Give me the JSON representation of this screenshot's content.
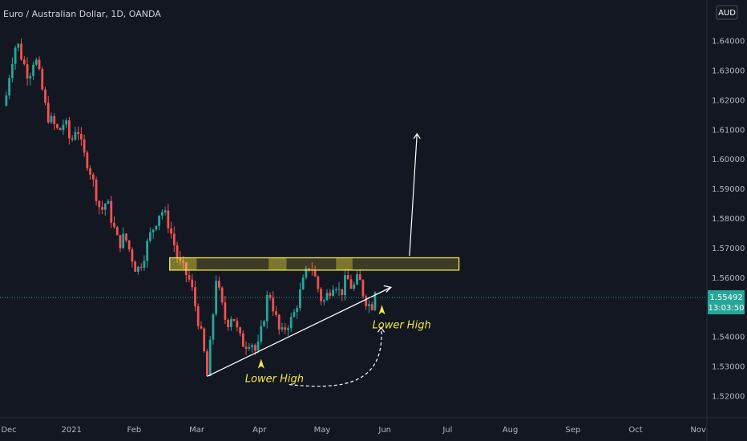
{
  "header": {
    "title": "Euro / Australian Dollar, 1D, OANDA"
  },
  "currency_badge": "AUD",
  "colors": {
    "background": "#131722",
    "up": "#26a69a",
    "down": "#ef5350",
    "zone": "#f5e642",
    "annotation": "#f5e642",
    "line": "#ffffff"
  },
  "price_label": {
    "price": "1.55492",
    "countdown": "13:03:50"
  },
  "chart_data": {
    "type": "candlestick",
    "title": "Euro / Australian Dollar, 1D, OANDA",
    "x_ticks": [
      "Dec",
      "2021",
      "Feb",
      "Mar",
      "Apr",
      "May",
      "Jun",
      "Jul",
      "Aug",
      "Sep",
      "Oct",
      "Nov"
    ],
    "y_ticks": [
      "1.64000",
      "1.63000",
      "1.62000",
      "1.61000",
      "1.60000",
      "1.59000",
      "1.58000",
      "1.57000",
      "1.56000",
      "1.55000",
      "1.54000",
      "1.53000",
      "1.52000"
    ],
    "ylim": [
      1.5155,
      1.6502
    ],
    "grid": false,
    "current_price": 1.55492,
    "close_path": [
      [
        0,
        1.618
      ],
      [
        4,
        1.632
      ],
      [
        8,
        1.64
      ],
      [
        12,
        1.633
      ],
      [
        16,
        1.628
      ],
      [
        20,
        1.635
      ],
      [
        24,
        1.626
      ],
      [
        28,
        1.615
      ],
      [
        32,
        1.612
      ],
      [
        36,
        1.609
      ],
      [
        40,
        1.613
      ],
      [
        44,
        1.605
      ],
      [
        48,
        1.612
      ],
      [
        52,
        1.602
      ],
      [
        56,
        1.598
      ],
      [
        60,
        1.59
      ],
      [
        64,
        1.582
      ],
      [
        68,
        1.586
      ],
      [
        72,
        1.578
      ],
      [
        76,
        1.571
      ],
      [
        80,
        1.574
      ],
      [
        84,
        1.568
      ],
      [
        88,
        1.562
      ],
      [
        92,
        1.566
      ],
      [
        96,
        1.573
      ],
      [
        100,
        1.578
      ],
      [
        104,
        1.583
      ],
      [
        108,
        1.58
      ],
      [
        112,
        1.573
      ],
      [
        116,
        1.565
      ],
      [
        120,
        1.562
      ],
      [
        124,
        1.558
      ],
      [
        128,
        1.548
      ],
      [
        132,
        1.538
      ],
      [
        135,
        1.5265
      ],
      [
        138,
        1.542
      ],
      [
        141,
        1.56
      ],
      [
        144,
        1.552
      ],
      [
        148,
        1.544
      ],
      [
        152,
        1.548
      ],
      [
        156,
        1.54
      ],
      [
        160,
        1.537
      ],
      [
        164,
        1.539
      ],
      [
        168,
        1.534
      ],
      [
        172,
        1.544
      ],
      [
        176,
        1.556
      ],
      [
        180,
        1.548
      ],
      [
        184,
        1.54
      ],
      [
        188,
        1.544
      ],
      [
        192,
        1.546
      ],
      [
        196,
        1.553
      ],
      [
        200,
        1.56
      ],
      [
        204,
        1.565
      ],
      [
        208,
        1.558
      ],
      [
        212,
        1.551
      ],
      [
        216,
        1.555
      ],
      [
        220,
        1.559
      ],
      [
        224,
        1.554
      ],
      [
        228,
        1.56
      ],
      [
        232,
        1.556
      ],
      [
        236,
        1.56
      ],
      [
        240,
        1.553
      ],
      [
        244,
        1.55
      ],
      [
        248,
        1.553
      ]
    ],
    "resistance_zone": {
      "x": [
        110,
        303
      ],
      "price": [
        1.5635,
        1.5655
      ]
    },
    "support_line": {
      "from": [
        135,
        1.5265
      ],
      "to": [
        248,
        1.5547
      ]
    },
    "projection_arrow": {
      "from": [
        270,
        1.564
      ],
      "to": [
        275,
        1.6085
      ]
    },
    "annotations": [
      {
        "text": "Lower High",
        "anchor": [
          171,
          1.5335
        ]
      },
      {
        "text": "Lower High",
        "anchor": [
          250,
          1.5512
        ]
      }
    ]
  }
}
